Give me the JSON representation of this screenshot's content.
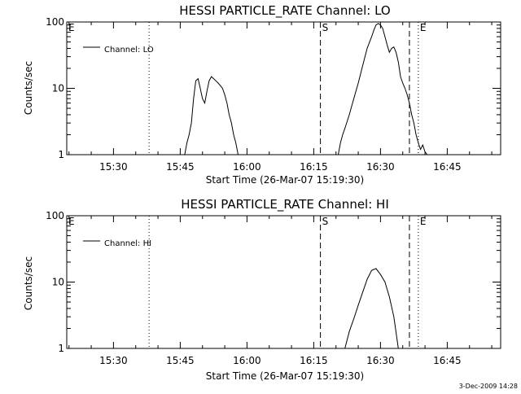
{
  "chart_data": [
    {
      "type": "line",
      "title": "HESSI PARTICLE_RATE Channel: LO",
      "xlabel": "Start Time (26-Mar-07 15:19:30)",
      "ylabel": "Counts/sec",
      "yscale": "log",
      "xlim": [
        "15:19:30",
        "16:57:00"
      ],
      "ylim": [
        1,
        100
      ],
      "xticks": [
        "15:30",
        "15:45",
        "16:00",
        "16:15",
        "16:30",
        "16:45"
      ],
      "yticks": [
        "1",
        "10",
        "100"
      ],
      "legend": {
        "placement": "top-left",
        "entries": [
          "Channel: LO"
        ]
      },
      "markers": [
        {
          "label": "E",
          "time": "15:19:30",
          "style": "none"
        },
        {
          "label": "",
          "time": "15:38:00",
          "style": "dotted"
        },
        {
          "label": "S",
          "time": "16:16:30",
          "style": "dashed"
        },
        {
          "label": "",
          "time": "16:36:30",
          "style": "dashed"
        },
        {
          "label": "E",
          "time": "16:38:30",
          "style": "dotted"
        },
        {
          "label": "",
          "time": "16:57:00",
          "style": "dotted"
        }
      ],
      "series": [
        {
          "name": "Channel: LO",
          "x": [
            "15:46:00",
            "15:46:30",
            "15:47:00",
            "15:47:30",
            "15:48:00",
            "15:48:30",
            "15:49:00",
            "15:49:30",
            "15:50:00",
            "15:50:30",
            "15:51:00",
            "15:51:30",
            "15:52:00",
            "15:52:30",
            "15:53:00",
            "15:53:30",
            "15:54:00",
            "15:54:30",
            "15:55:00",
            "15:55:30",
            "15:56:00",
            "15:56:30",
            "15:57:00",
            "15:57:30",
            "15:58:00",
            "16:20:30",
            "16:21:00",
            "16:21:30",
            "16:22:00",
            "16:23:00",
            "16:24:00",
            "16:25:00",
            "16:26:00",
            "16:27:00",
            "16:28:00",
            "16:28:30",
            "16:29:00",
            "16:29:30",
            "16:30:00",
            "16:30:30",
            "16:31:00",
            "16:31:30",
            "16:32:00",
            "16:32:30",
            "16:33:00",
            "16:33:30",
            "16:34:00",
            "16:34:30",
            "16:35:00",
            "16:35:30",
            "16:36:00",
            "16:36:30",
            "16:37:00",
            "16:37:30",
            "16:38:00",
            "16:38:30",
            "16:39:00",
            "16:39:30",
            "16:40:00",
            "16:40:30"
          ],
          "y": [
            1,
            1.5,
            2,
            3,
            7,
            13,
            14,
            10,
            7,
            6,
            9,
            13,
            15,
            14,
            13,
            12,
            11,
            10,
            8,
            6,
            4,
            3,
            2,
            1.5,
            1,
            1,
            1.5,
            2,
            2.5,
            4,
            7,
            12,
            22,
            40,
            60,
            75,
            90,
            95,
            90,
            80,
            60,
            45,
            35,
            40,
            42,
            35,
            25,
            15,
            12,
            10,
            8,
            6,
            4,
            3,
            2,
            1.5,
            1.2,
            1.4,
            1.1,
            1
          ]
        }
      ]
    },
    {
      "type": "line",
      "title": "HESSI PARTICLE_RATE Channel: HI",
      "xlabel": "Start Time (26-Mar-07 15:19:30)",
      "ylabel": "Counts/sec",
      "yscale": "log",
      "xlim": [
        "15:19:30",
        "16:57:00"
      ],
      "ylim": [
        1,
        100
      ],
      "xticks": [
        "15:30",
        "15:45",
        "16:00",
        "16:15",
        "16:30",
        "16:45"
      ],
      "yticks": [
        "1",
        "10",
        "100"
      ],
      "legend": {
        "placement": "top-left",
        "entries": [
          "Channel: HI"
        ]
      },
      "markers": [
        {
          "label": "E",
          "time": "15:19:30",
          "style": "none"
        },
        {
          "label": "",
          "time": "15:38:00",
          "style": "dotted"
        },
        {
          "label": "S",
          "time": "16:16:30",
          "style": "dashed"
        },
        {
          "label": "",
          "time": "16:36:30",
          "style": "dashed"
        },
        {
          "label": "E",
          "time": "16:38:30",
          "style": "dotted"
        },
        {
          "label": "",
          "time": "16:57:00",
          "style": "dotted"
        }
      ],
      "series": [
        {
          "name": "Channel: HI",
          "x": [
            "16:22:00",
            "16:23:00",
            "16:24:00",
            "16:25:00",
            "16:26:00",
            "16:27:00",
            "16:28:00",
            "16:29:00",
            "16:30:00",
            "16:31:00",
            "16:32:00",
            "16:33:00",
            "16:34:00"
          ],
          "y": [
            1,
            1.8,
            2.8,
            4.5,
            7,
            11,
            15,
            16,
            13,
            10,
            6,
            3,
            1
          ]
        }
      ]
    }
  ],
  "footer": {
    "datestamp": "3-Dec-2009 14:28"
  }
}
